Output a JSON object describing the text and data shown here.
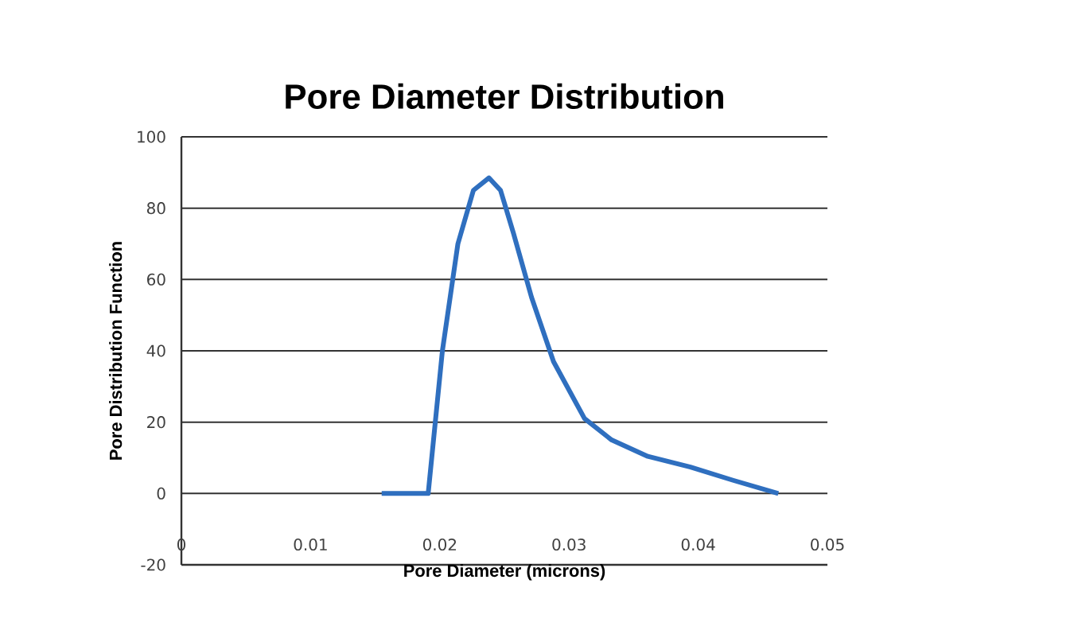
{
  "chart_data": {
    "type": "line",
    "title": "Pore Diameter Distribution",
    "xlabel": "Pore Diameter (microns)",
    "ylabel": "Pore Distribution Function",
    "xlim": [
      0,
      0.05
    ],
    "xticks": [
      0,
      0.01,
      0.02,
      0.03,
      0.04,
      0.05
    ],
    "ylim": [
      -20,
      100
    ],
    "yticks": [
      -20,
      0,
      20,
      40,
      60,
      80,
      100
    ],
    "grid": "y",
    "marker": "none",
    "line_style": "solid",
    "series": [
      {
        "color": "#2f6fbf",
        "x": [
          0.0155,
          0.0191,
          0.0202,
          0.0214,
          0.0226,
          0.0238,
          0.0247,
          0.0257,
          0.0271,
          0.0288,
          0.0312,
          0.0333,
          0.0361,
          0.0394,
          0.0427,
          0.0462
        ],
        "values": [
          0,
          0,
          40,
          70,
          85,
          88.5,
          85,
          73,
          55,
          37,
          21,
          15,
          10.4,
          7.4,
          3.7,
          0
        ]
      }
    ]
  }
}
